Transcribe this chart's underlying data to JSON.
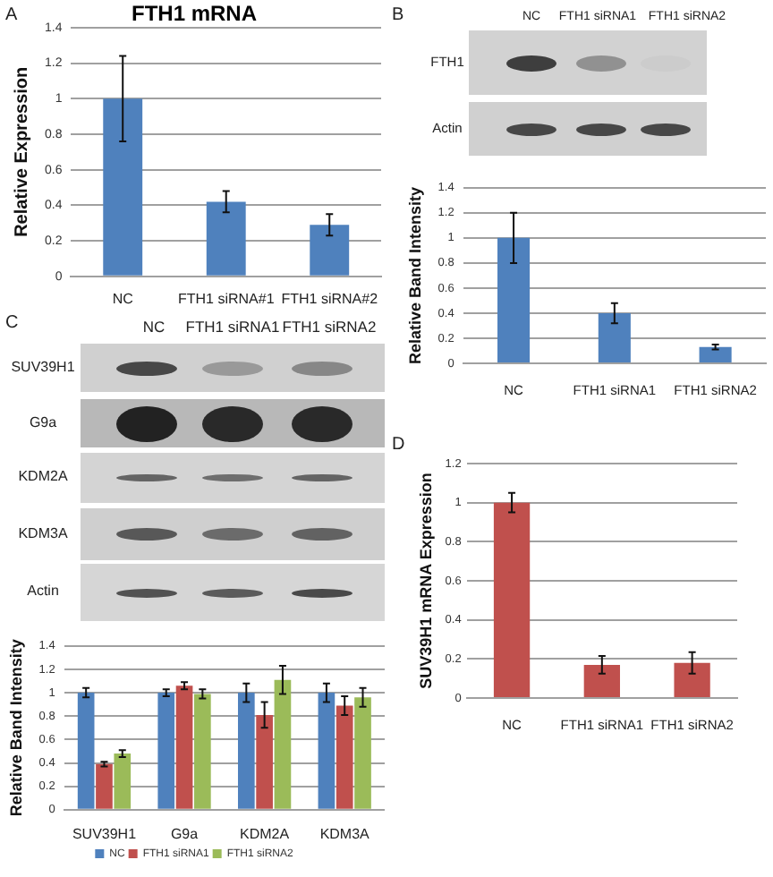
{
  "chart_data": [
    {
      "type": "bar",
      "title": "FTH1 mRNA",
      "ylabel": "Relative Expression",
      "annotations": [
        "A"
      ],
      "categories": [
        "NC",
        "FTH1 siRNA#1",
        "FTH1 siRNA#2"
      ],
      "values": [
        1.0,
        0.42,
        0.29
      ],
      "errors": [
        0.24,
        0.06,
        0.06
      ],
      "color": "#4f81bd",
      "ylim": [
        0,
        1.4
      ],
      "yticks": [
        0,
        0.2,
        0.4,
        0.6,
        0.8,
        1,
        1.2,
        1.4
      ],
      "grid": "y"
    },
    {
      "type": "other",
      "annotations": [
        "B"
      ],
      "categories": [
        "NC",
        "FTH1 siRNA1",
        "FTH1 siRNA2"
      ],
      "y_categories": [
        "FTH1",
        "Actin"
      ]
    },
    {
      "type": "bar",
      "ylabel": "Relative Band Intensity",
      "categories": [
        "NC",
        "FTH1 siRNA1",
        "FTH1 siRNA2"
      ],
      "values": [
        1.0,
        0.4,
        0.13
      ],
      "errors": [
        0.2,
        0.08,
        0.02
      ],
      "color": "#4f81bd",
      "ylim": [
        0,
        1.4
      ],
      "yticks": [
        0,
        0.2,
        0.4,
        0.6,
        0.8,
        1,
        1.2,
        1.4
      ],
      "grid": "y"
    },
    {
      "type": "other",
      "annotations": [
        "C"
      ],
      "categories": [
        "NC",
        "FTH1 siRNA1",
        "FTH1 siRNA2"
      ],
      "y_categories": [
        "SUV39H1",
        "G9a",
        "KDM2A",
        "KDM3A",
        "Actin"
      ]
    },
    {
      "type": "bar",
      "ylabel": "Relative Band Intensity",
      "categories": [
        "SUV39H1",
        "G9a",
        "KDM2A",
        "KDM3A"
      ],
      "series": [
        {
          "name": "NC",
          "color": "#4f81bd",
          "values": [
            1.0,
            1.0,
            1.0,
            1.0
          ],
          "errors": [
            0.04,
            0.03,
            0.08,
            0.08
          ]
        },
        {
          "name": "FTH1 siRNA1",
          "color": "#c0504d",
          "values": [
            0.39,
            1.06,
            0.81,
            0.89
          ],
          "errors": [
            0.02,
            0.03,
            0.11,
            0.08
          ]
        },
        {
          "name": "FTH1 siRNA2",
          "color": "#9bbb59",
          "values": [
            0.48,
            0.99,
            1.11,
            0.96
          ],
          "errors": [
            0.03,
            0.04,
            0.12,
            0.08
          ]
        }
      ],
      "ylim": [
        0,
        1.4
      ],
      "yticks": [
        0,
        0.2,
        0.4,
        0.6,
        0.8,
        1,
        1.2,
        1.4
      ],
      "grid": "y",
      "legend": "bottom"
    },
    {
      "type": "bar",
      "annotations": [
        "D"
      ],
      "ylabel": "SUV39H1 mRNA Expression",
      "categories": [
        "NC",
        "FTH1 siRNA1",
        "FTH1 siRNA2"
      ],
      "values": [
        1.0,
        0.17,
        0.18
      ],
      "errors": [
        0.05,
        0.045,
        0.055
      ],
      "color": "#c0504d",
      "ylim": [
        0,
        1.2
      ],
      "yticks": [
        0,
        0.2,
        0.4,
        0.6,
        0.8,
        1,
        1.2
      ],
      "grid": "y"
    }
  ]
}
